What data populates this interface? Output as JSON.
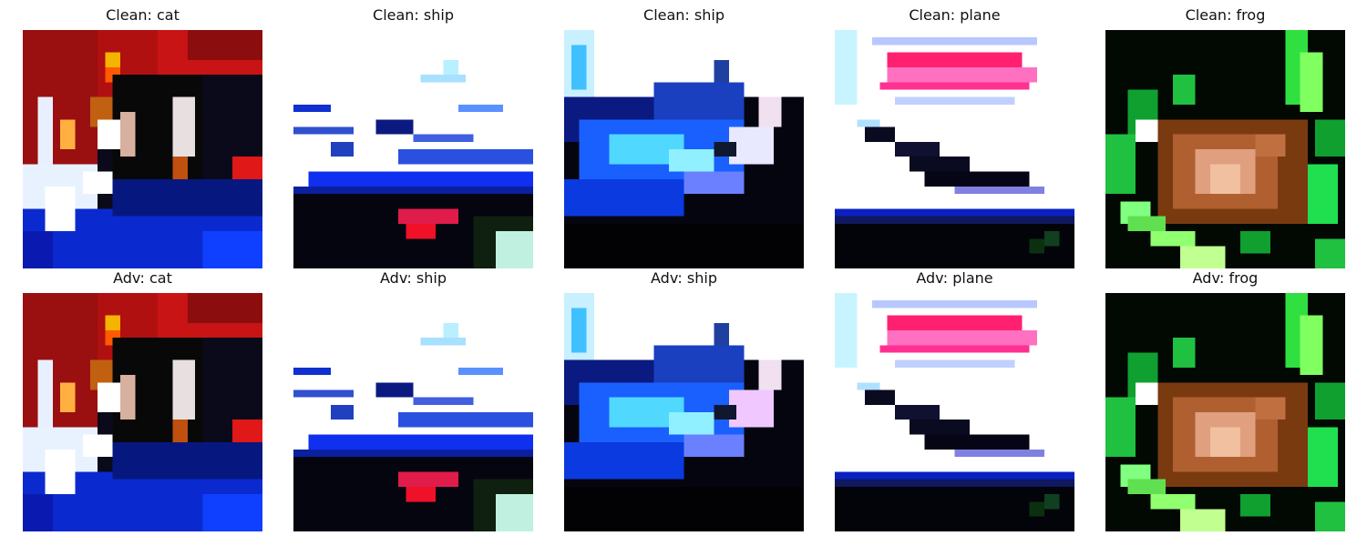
{
  "figure": {
    "rows": [
      {
        "row": "clean",
        "panels": [
          {
            "title": "Clean: cat",
            "image": "cat-photo"
          },
          {
            "title": "Clean: ship",
            "image": "ship-photo-1"
          },
          {
            "title": "Clean: ship",
            "image": "ship-photo-2"
          },
          {
            "title": "Clean: plane",
            "image": "plane-photo"
          },
          {
            "title": "Clean: frog",
            "image": "frog-photo"
          }
        ]
      },
      {
        "row": "adversarial",
        "panels": [
          {
            "title": "Adv: cat",
            "image": "cat-photo"
          },
          {
            "title": "Adv: ship",
            "image": "ship-photo-1"
          },
          {
            "title": "Adv: ship",
            "image": "ship-photo-2"
          },
          {
            "title": "Adv: plane",
            "image": "plane-photo"
          },
          {
            "title": "Adv: frog",
            "image": "frog-photo"
          }
        ]
      }
    ]
  }
}
